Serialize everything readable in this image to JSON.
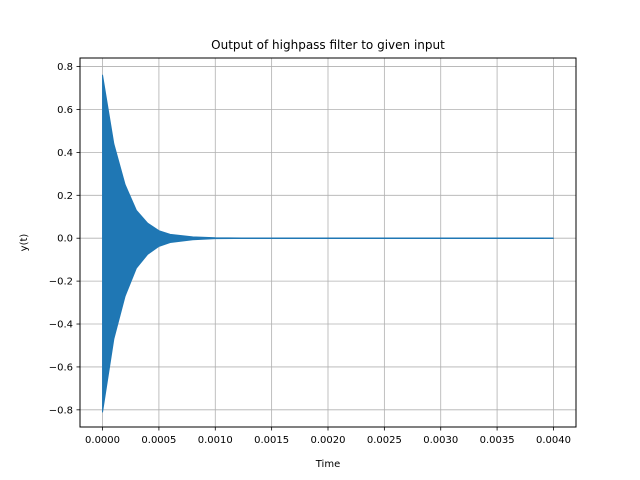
{
  "chart_data": {
    "type": "line",
    "title": "Output of highpass filter to given input",
    "xlabel": "Time",
    "ylabel": "y(t)",
    "xlim": [
      -0.0002,
      0.0042
    ],
    "ylim": [
      -0.88,
      0.84
    ],
    "grid": true,
    "x_ticks": [
      0.0,
      0.0005,
      0.001,
      0.0015,
      0.002,
      0.0025,
      0.003,
      0.0035,
      0.004
    ],
    "x_tick_labels": [
      "0.0000",
      "0.0005",
      "0.0010",
      "0.0015",
      "0.0020",
      "0.0025",
      "0.0030",
      "0.0035",
      "0.0040"
    ],
    "y_ticks": [
      -0.8,
      -0.6,
      -0.4,
      -0.2,
      0.0,
      0.2,
      0.4,
      0.6,
      0.8
    ],
    "y_tick_labels": [
      "−0.8",
      "−0.6",
      "−0.4",
      "−0.2",
      "0.0",
      "0.2",
      "0.4",
      "0.6",
      "0.8"
    ],
    "series": [
      {
        "color": "#1f77b4",
        "x_range": [
          0.0,
          0.004
        ],
        "upper_envelope": {
          "x": [
            0.0,
            0.0001,
            0.0002,
            0.0003,
            0.0004,
            0.0005,
            0.0006,
            0.0008,
            0.001,
            0.0015,
            0.004
          ],
          "y": [
            0.76,
            0.44,
            0.25,
            0.13,
            0.07,
            0.035,
            0.018,
            0.006,
            0.002,
            0.0,
            0.0
          ]
        },
        "lower_envelope": {
          "x": [
            0.0,
            0.0001,
            0.0002,
            0.0003,
            0.0004,
            0.0005,
            0.0006,
            0.0008,
            0.001,
            0.0015,
            0.004
          ],
          "y": [
            -0.81,
            -0.47,
            -0.27,
            -0.14,
            -0.075,
            -0.038,
            -0.02,
            -0.007,
            -0.002,
            0.0,
            0.0
          ]
        }
      }
    ]
  }
}
